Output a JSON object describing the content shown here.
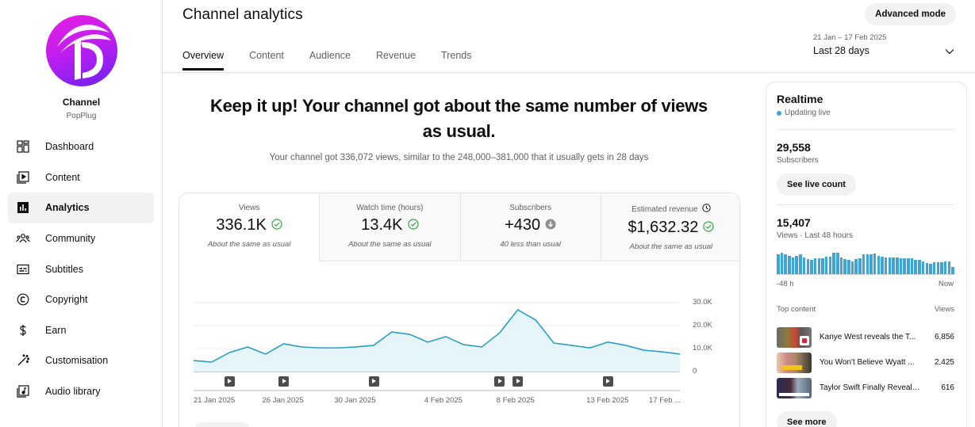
{
  "sidebar": {
    "channel_name": "Channel",
    "channel_handle": "PopPlug",
    "items": [
      {
        "label": "Dashboard",
        "icon": "dashboard-icon",
        "active": false
      },
      {
        "label": "Content",
        "icon": "content-icon",
        "active": false
      },
      {
        "label": "Analytics",
        "icon": "analytics-icon",
        "active": true
      },
      {
        "label": "Community",
        "icon": "community-icon",
        "active": false
      },
      {
        "label": "Subtitles",
        "icon": "subtitles-icon",
        "active": false
      },
      {
        "label": "Copyright",
        "icon": "copyright-icon",
        "active": false
      },
      {
        "label": "Earn",
        "icon": "earn-icon",
        "active": false
      },
      {
        "label": "Customisation",
        "icon": "customisation-icon",
        "active": false
      },
      {
        "label": "Audio library",
        "icon": "audio-library-icon",
        "active": false
      }
    ]
  },
  "header": {
    "title": "Channel analytics",
    "advanced_mode_label": "Advanced mode",
    "tabs": [
      {
        "label": "Overview",
        "active": true
      },
      {
        "label": "Content",
        "active": false
      },
      {
        "label": "Audience",
        "active": false
      },
      {
        "label": "Revenue",
        "active": false
      },
      {
        "label": "Trends",
        "active": false
      }
    ],
    "date_range": "21 Jan – 17 Feb 2025",
    "date_label": "Last 28 days"
  },
  "main": {
    "headline": "Keep it up! Your channel got about the same number of views as usual.",
    "subline": "Your channel got 336,072 views, similar to the 248,000–381,000 that it usually gets in 28 days",
    "metrics": [
      {
        "label": "Views",
        "value": "336.1K",
        "status": "check",
        "note": "About the same as usual",
        "active": true
      },
      {
        "label": "Watch time (hours)",
        "value": "13.4K",
        "status": "check",
        "note": "About the same as usual",
        "active": false
      },
      {
        "label": "Subscribers",
        "value": "+430",
        "status": "down",
        "note": "40 less than usual",
        "active": false
      },
      {
        "label": "Estimated revenue",
        "value": "$1,632.32",
        "status": "check",
        "note": "About the same as usual",
        "active": false,
        "has_clock": true
      }
    ],
    "chart": {
      "y_ticks": [
        "30.0K",
        "20.0K",
        "10.0K",
        "0"
      ],
      "x_ticks": [
        "21 Jan 2025",
        "26 Jan 2025",
        "30 Jan 2025",
        "4 Feb 2025",
        "8 Feb 2025",
        "13 Feb 2025",
        "17 Feb ..."
      ]
    }
  },
  "chart_data": {
    "type": "area",
    "title": "Views",
    "xlabel": "",
    "ylabel": "Views",
    "ylim": [
      0,
      30000
    ],
    "x_tick_labels": [
      "21 Jan 2025",
      "26 Jan 2025",
      "30 Jan 2025",
      "4 Feb 2025",
      "8 Feb 2025",
      "13 Feb 2025",
      "17 Feb ..."
    ],
    "y_tick_labels": [
      "0",
      "10.0K",
      "20.0K",
      "30.0K"
    ],
    "grid": true,
    "x": [
      "21 Jan",
      "22 Jan",
      "23 Jan",
      "24 Jan",
      "25 Jan",
      "26 Jan",
      "27 Jan",
      "28 Jan",
      "29 Jan",
      "30 Jan",
      "31 Jan",
      "1 Feb",
      "2 Feb",
      "3 Feb",
      "4 Feb",
      "5 Feb",
      "6 Feb",
      "7 Feb",
      "8 Feb",
      "9 Feb",
      "10 Feb",
      "11 Feb",
      "12 Feb",
      "13 Feb",
      "14 Feb",
      "15 Feb",
      "16 Feb",
      "17 Feb"
    ],
    "series": [
      {
        "name": "Views",
        "color": "#2a9fc6",
        "values": [
          4800,
          4100,
          8300,
          10700,
          7600,
          12100,
          10700,
          10300,
          10300,
          10700,
          11400,
          17200,
          16200,
          12800,
          15200,
          11700,
          10700,
          16900,
          26900,
          22400,
          12400,
          11400,
          10300,
          12800,
          11400,
          9300,
          8600,
          7600
        ]
      }
    ],
    "video_publish_markers_day_index": [
      2,
      5,
      10,
      17,
      18,
      23
    ]
  },
  "realtime": {
    "title": "Realtime",
    "status": "Updating live",
    "subscribers_value": "29,558",
    "subscribers_label": "Subscribers",
    "see_live_count_label": "See live count",
    "views_value": "15,407",
    "views_label": "Views · Last 48 hours",
    "axis_start": "-48 h",
    "axis_end": "Now",
    "hourly_bars": [
      21,
      23,
      21,
      20,
      18,
      20,
      21,
      18,
      16,
      15,
      17,
      17,
      17,
      19,
      19,
      23,
      23,
      18,
      16,
      15,
      14,
      16,
      17,
      21,
      21,
      21,
      22,
      20,
      19,
      18,
      18,
      18,
      18,
      17,
      17,
      17,
      17,
      15,
      15,
      14,
      12,
      11,
      13,
      13,
      13,
      14,
      14,
      8
    ],
    "top_content_label": "Top content",
    "top_content_views_label": "Views",
    "top_content": [
      {
        "title": "Kanye West reveals the T...",
        "views": "6,856"
      },
      {
        "title": "You Won't Believe Wyatt ...",
        "views": "2,425"
      },
      {
        "title": "Taylor Swift Finally Reveals...",
        "views": "616"
      }
    ],
    "see_more_label": "See more"
  },
  "colors": {
    "accent_line": "#2a9fc6",
    "area_fill": "#e6f5fa",
    "mini_bar": "#3ea6d6",
    "check_green": "#2ba640",
    "down_gray": "#909090"
  }
}
